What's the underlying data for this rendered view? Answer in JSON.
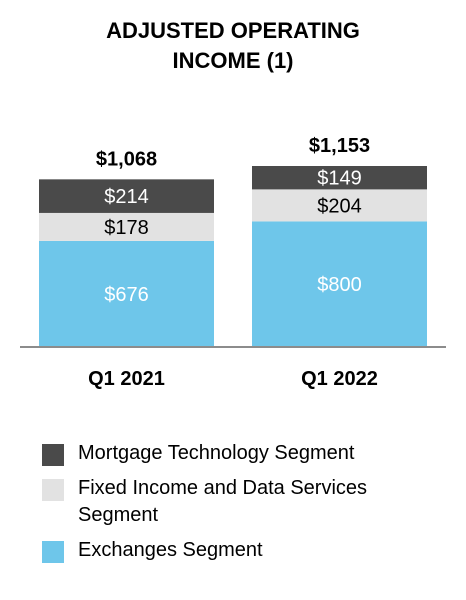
{
  "chart_data": {
    "type": "bar",
    "stacked": true,
    "title_lines": [
      "ADJUSTED OPERATING",
      "INCOME (1)"
    ],
    "categories": [
      "Q1 2021",
      "Q1 2022"
    ],
    "totals": [
      1068,
      1153
    ],
    "total_labels": [
      "$1,068",
      "$1,153"
    ],
    "series": [
      {
        "name": "Exchanges Segment",
        "values": [
          676,
          800
        ],
        "labels": [
          "$676",
          "$800"
        ],
        "color": "#6ec6ea",
        "label_color": "#ffffff"
      },
      {
        "name": "Fixed Income and Data Services Segment",
        "values": [
          178,
          204
        ],
        "labels": [
          "$178",
          "$204"
        ],
        "color": "#e2e2e2",
        "label_color": "#000000"
      },
      {
        "name": "Mortgage Technology Segment",
        "values": [
          214,
          149
        ],
        "labels": [
          "$214",
          "$149"
        ],
        "color": "#4a4a4a",
        "label_color": "#ffffff"
      }
    ],
    "legend_order": [
      2,
      1,
      0
    ],
    "legend_position": "bottom",
    "grid": false,
    "ylim": [
      0,
      1153
    ]
  },
  "legend": {
    "items": [
      {
        "lines": [
          "Mortgage Technology Segment"
        ],
        "color": "#4a4a4a"
      },
      {
        "lines": [
          "Fixed Income and Data Services",
          "Segment"
        ],
        "color": "#e2e2e2"
      },
      {
        "lines": [
          "Exchanges Segment"
        ],
        "color": "#6ec6ea"
      }
    ]
  }
}
